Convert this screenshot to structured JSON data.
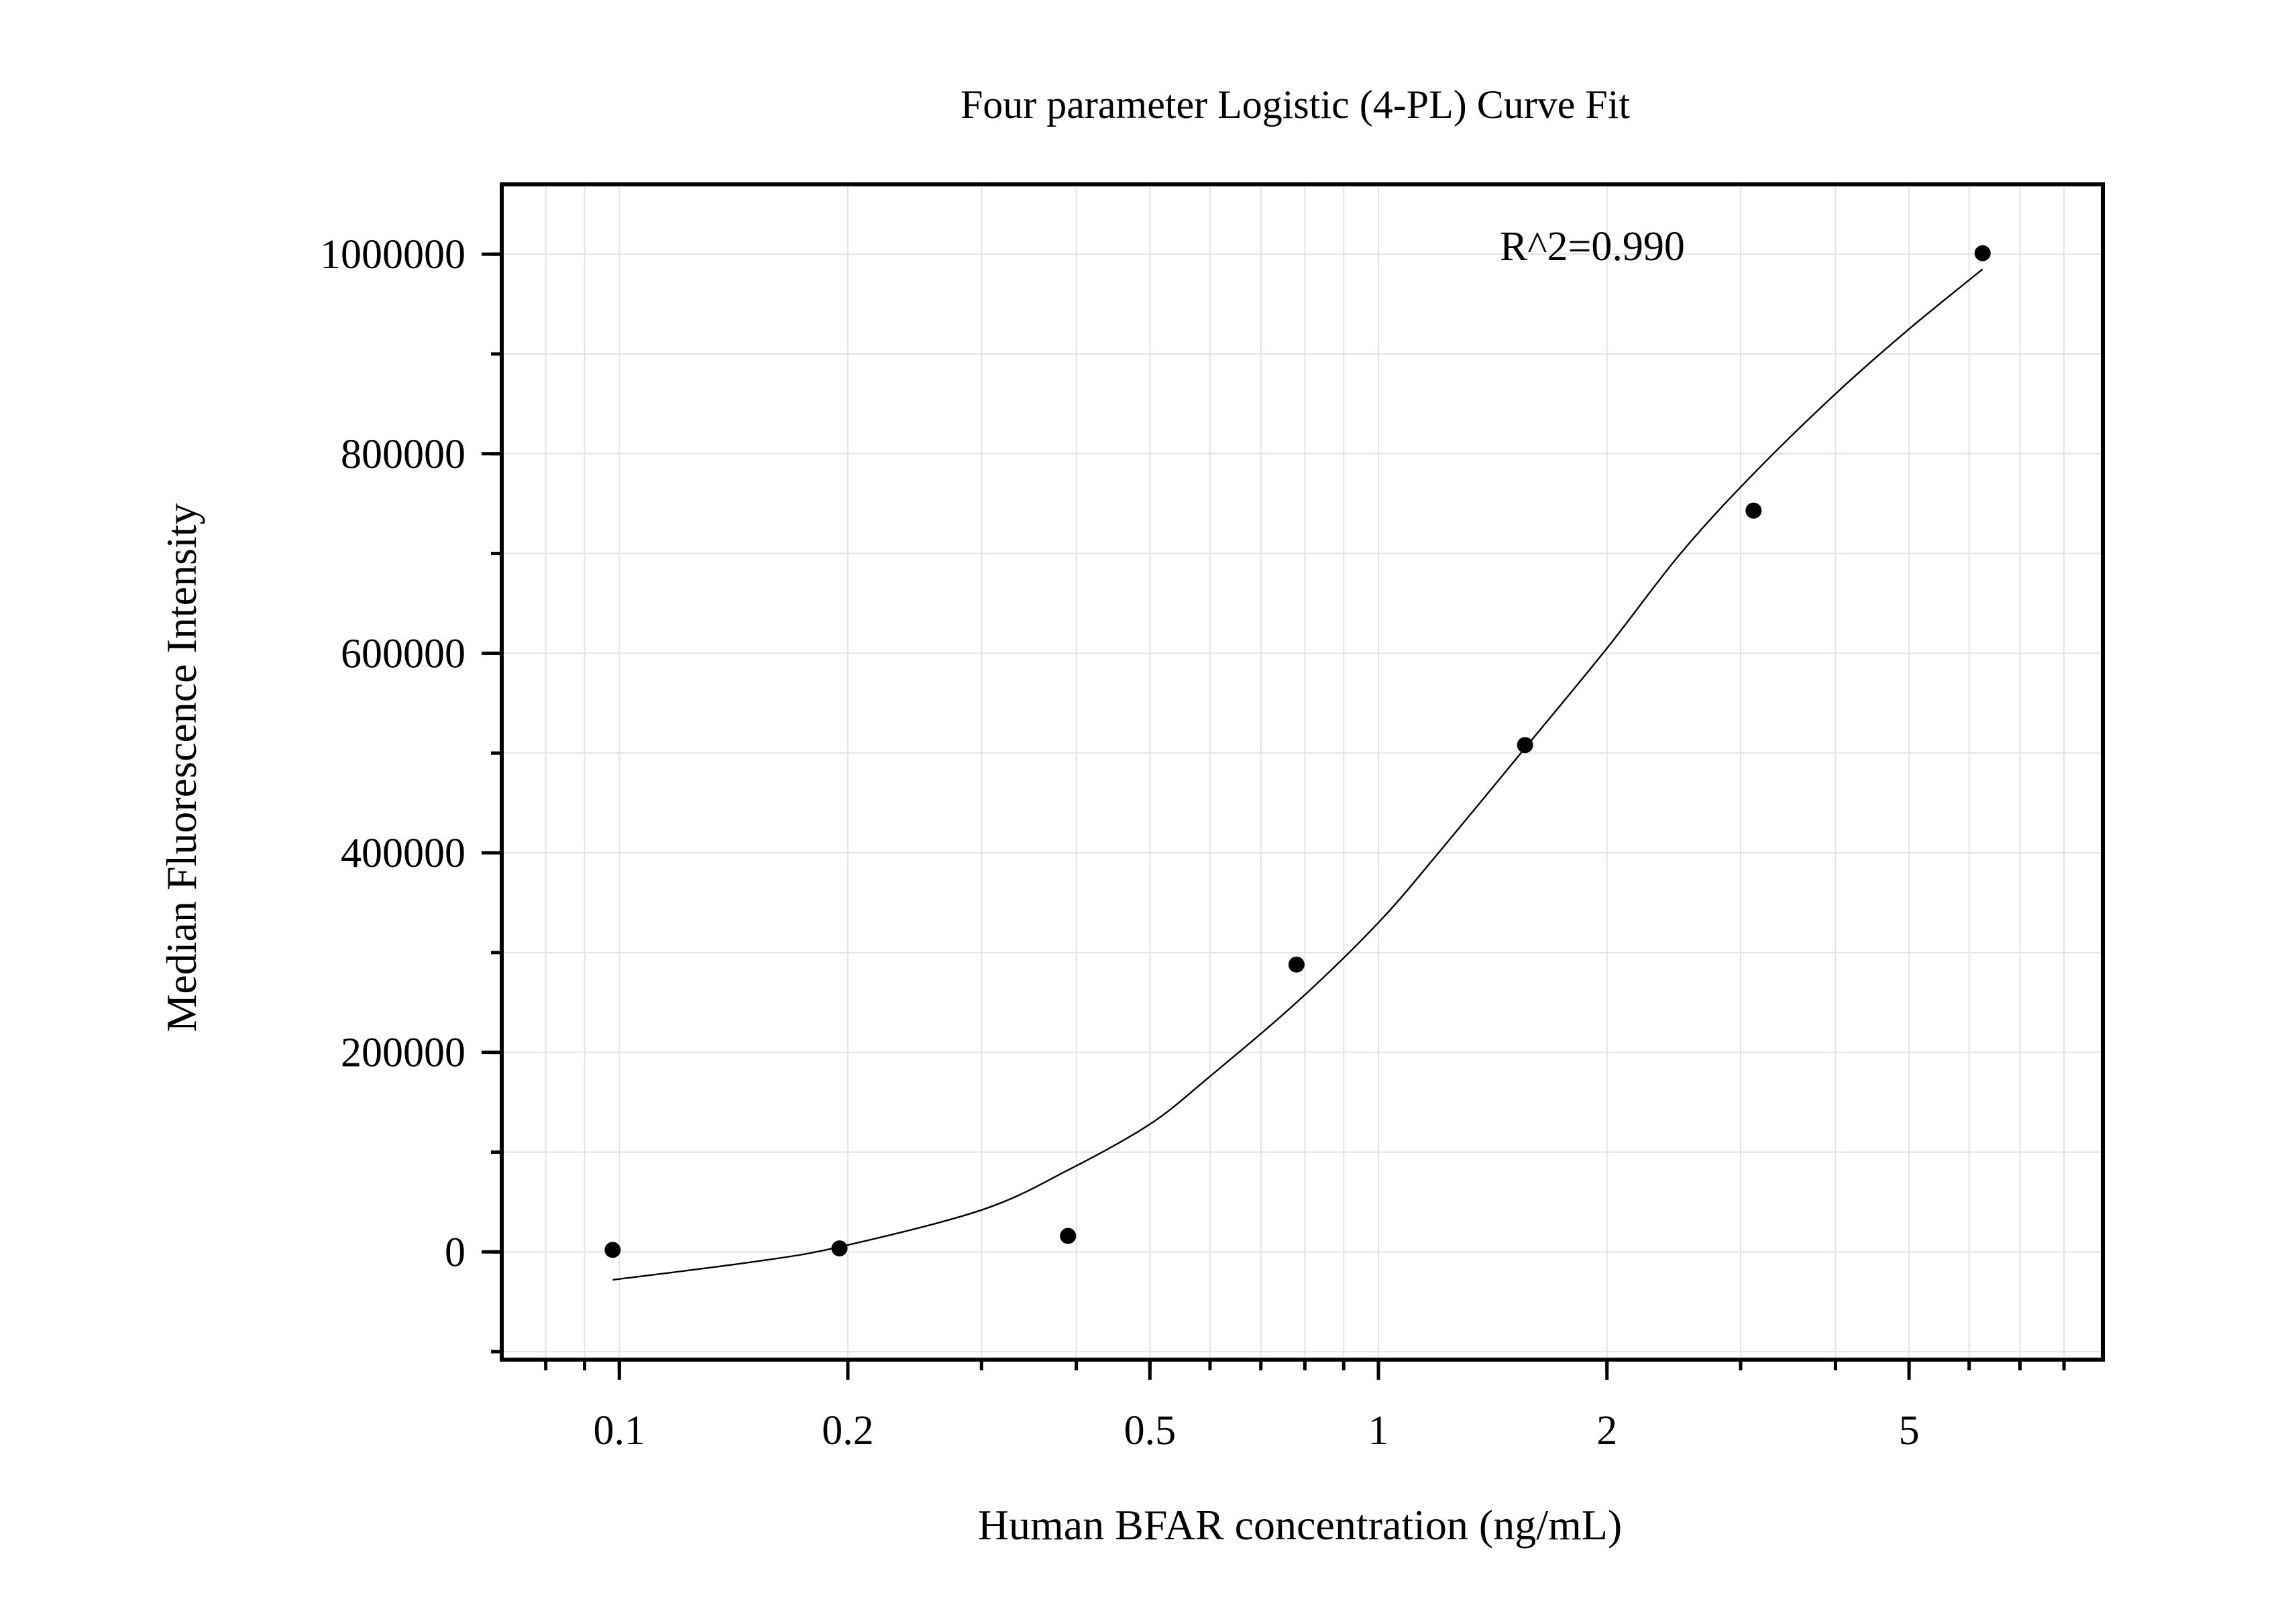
{
  "chart_data": {
    "type": "scatter",
    "title": "Four parameter Logistic (4-PL) Curve Fit",
    "xlabel": "Human BFAR concentration (ng/mL)",
    "ylabel": "Median Fluorescence Intensity",
    "x_scale": "log",
    "xlim": [
      0.07,
      9.0
    ],
    "ylim": [
      -108000,
      1070000
    ],
    "x_ticks": [
      {
        "value": 0.1,
        "label": "0.1"
      },
      {
        "value": 0.2,
        "label": "0.2"
      },
      {
        "value": 0.5,
        "label": "0.5"
      },
      {
        "value": 1,
        "label": "1"
      },
      {
        "value": 2,
        "label": "2"
      },
      {
        "value": 5,
        "label": "5"
      }
    ],
    "y_ticks": [
      {
        "value": 0,
        "label": "0"
      },
      {
        "value": 200000,
        "label": "200000"
      },
      {
        "value": 400000,
        "label": "400000"
      },
      {
        "value": 600000,
        "label": "600000"
      },
      {
        "value": 800000,
        "label": "800000"
      },
      {
        "value": 1000000,
        "label": "1000000"
      }
    ],
    "grid": true,
    "annotation": "R^2=0.990",
    "series": [
      {
        "points": [
          {
            "x": 0.098,
            "y": 2000
          },
          {
            "x": 0.195,
            "y": 3500
          },
          {
            "x": 0.39,
            "y": 16000
          },
          {
            "x": 0.78,
            "y": 288000
          },
          {
            "x": 1.56,
            "y": 508000
          },
          {
            "x": 3.12,
            "y": 743000
          },
          {
            "x": 6.25,
            "y": 1001000
          }
        ]
      }
    ],
    "fit": {
      "model": "4PL",
      "x_range": [
        0.098,
        6.25
      ],
      "curve_points": [
        [
          0.098,
          -28000
        ],
        [
          0.15,
          -10000
        ],
        [
          0.195,
          5000
        ],
        [
          0.3,
          42000
        ],
        [
          0.39,
          82000
        ],
        [
          0.5,
          128000
        ],
        [
          0.6,
          176000
        ],
        [
          0.78,
          250000
        ],
        [
          1.0,
          330000
        ],
        [
          1.2,
          400000
        ],
        [
          1.56,
          505000
        ],
        [
          2.0,
          605000
        ],
        [
          2.5,
          700000
        ],
        [
          3.12,
          780000
        ],
        [
          4.0,
          860000
        ],
        [
          5.0,
          925000
        ],
        [
          6.25,
          985000
        ]
      ]
    },
    "colors": {
      "points": "#000000",
      "curve": "#000000",
      "grid": "#e3e3e3",
      "frame": "#000000"
    }
  }
}
